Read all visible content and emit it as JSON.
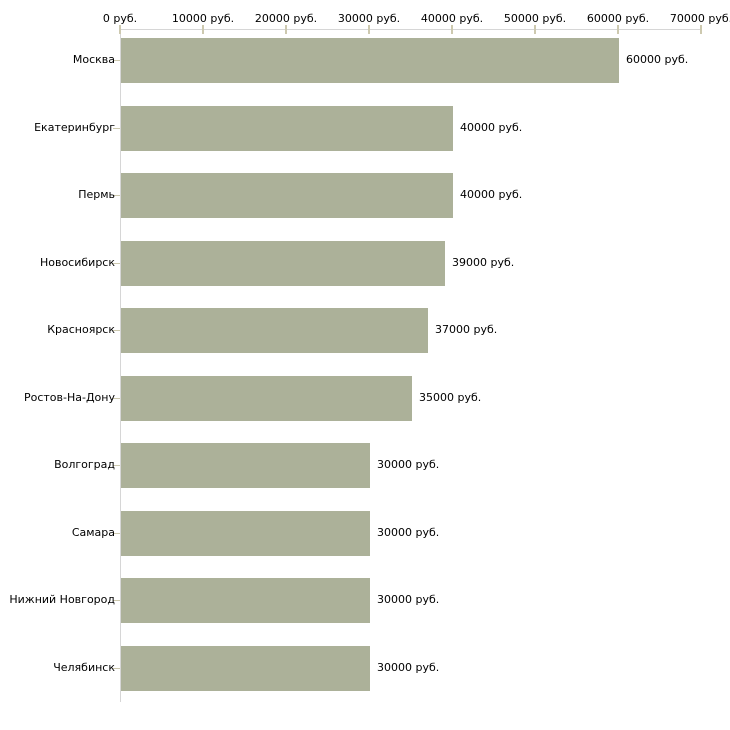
{
  "chart_data": {
    "type": "bar",
    "orientation": "horizontal",
    "title": "",
    "xlabel": "",
    "ylabel": "",
    "xlim": [
      0,
      70000
    ],
    "grid": false,
    "legend": "none",
    "x_ticks": [
      {
        "label": "0 руб.",
        "value": 0
      },
      {
        "label": "10000 руб.",
        "value": 10000
      },
      {
        "label": "20000 руб.",
        "value": 20000
      },
      {
        "label": "30000 руб.",
        "value": 30000
      },
      {
        "label": "40000 руб.",
        "value": 40000
      },
      {
        "label": "50000 руб.",
        "value": 50000
      },
      {
        "label": "60000 руб.",
        "value": 60000
      },
      {
        "label": "70000 руб.",
        "value": 70000
      }
    ],
    "categories": [
      "Москва",
      "Екатеринбург",
      "Пермь",
      "Новосибирск",
      "Красноярск",
      "Ростов-На-Дону",
      "Волгоград",
      "Самара",
      "Нижний Новгород",
      "Челябинск"
    ],
    "values": [
      60000,
      40000,
      40000,
      39000,
      37000,
      35000,
      30000,
      30000,
      30000,
      30000
    ],
    "value_labels": [
      "60000 руб.",
      "40000 руб.",
      "40000 руб.",
      "39000 руб.",
      "37000 руб.",
      "35000 руб.",
      "30000 руб.",
      "30000 руб.",
      "30000 руб.",
      "30000 руб."
    ],
    "colors": {
      "bar": "#acb199",
      "axis_line": "#d6d6d6",
      "tick": "#cdc9af",
      "text": "#000000",
      "background": "#ffffff"
    }
  }
}
